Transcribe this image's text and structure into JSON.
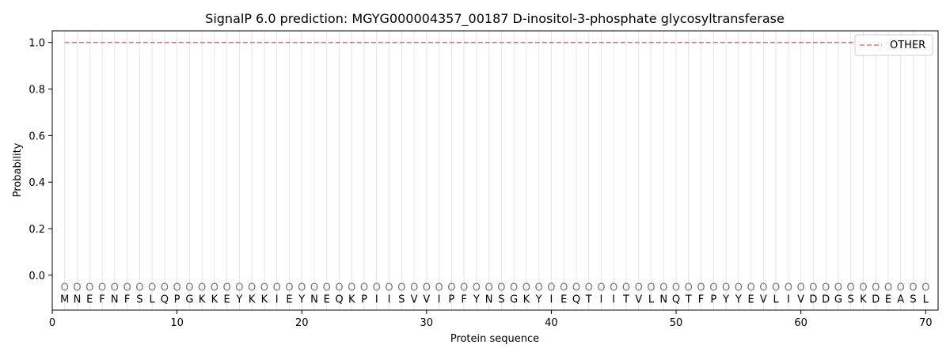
{
  "chart_data": {
    "type": "line",
    "title": "SignalP 6.0 prediction: MGYG000004357_00187 D-inositol-3-phosphate glycosyltransferase",
    "xlabel": "Protein sequence",
    "ylabel": "Probability",
    "xlim": [
      0,
      71
    ],
    "ylim": [
      -0.15,
      1.05
    ],
    "xticks": [
      0,
      10,
      20,
      30,
      40,
      50,
      60,
      70
    ],
    "yticks": [
      0.0,
      0.2,
      0.4,
      0.6,
      0.8,
      1.0
    ],
    "ytick_labels": [
      "0.0",
      "0.2",
      "0.4",
      "0.6",
      "0.8",
      "1.0"
    ],
    "legend_position": "top-right",
    "sequence": [
      "M",
      "N",
      "E",
      "F",
      "N",
      "F",
      "S",
      "L",
      "Q",
      "P",
      "G",
      "K",
      "K",
      "E",
      "Y",
      "K",
      "K",
      "I",
      "E",
      "Y",
      "N",
      "E",
      "Q",
      "K",
      "P",
      "I",
      "I",
      "S",
      "V",
      "V",
      "I",
      "P",
      "F",
      "Y",
      "N",
      "S",
      "G",
      "K",
      "Y",
      "I",
      "E",
      "Q",
      "T",
      "I",
      "I",
      "T",
      "V",
      "L",
      "N",
      "Q",
      "T",
      "F",
      "P",
      "Y",
      "Y",
      "E",
      "V",
      "L",
      "I",
      "V",
      "D",
      "D",
      "G",
      "S",
      "K",
      "D",
      "E",
      "A",
      "S",
      "L"
    ],
    "annotation_label": "O",
    "series": [
      {
        "name": "OTHER",
        "color": "#e87272",
        "style": "dashed",
        "x_start": 1,
        "x_end": 70,
        "value": 1.0
      }
    ]
  }
}
